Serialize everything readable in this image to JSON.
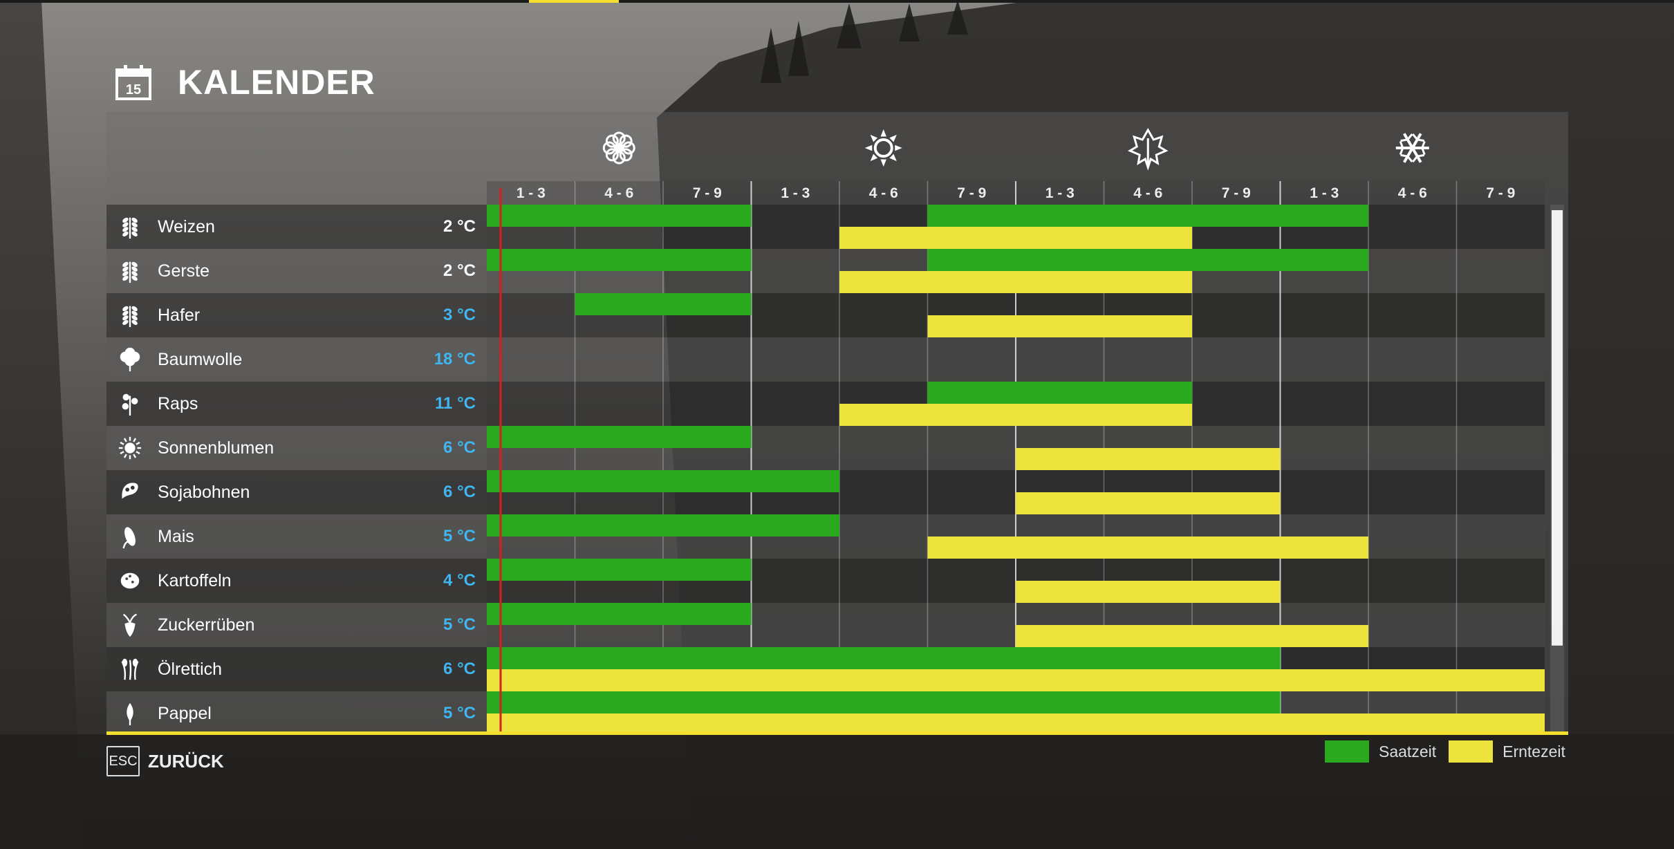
{
  "screen": {
    "title": "KALENDER",
    "calendar_day": "15"
  },
  "season_icons": [
    "spring-flower-icon",
    "summer-sun-icon",
    "autumn-leaf-icon",
    "winter-snowflake-icon"
  ],
  "periods": [
    "1 - 3",
    "4 - 6",
    "7 - 9",
    "1 - 3",
    "4 - 6",
    "7 - 9",
    "1 - 3",
    "4 - 6",
    "7 - 9",
    "1 - 3",
    "4 - 6",
    "7 - 9"
  ],
  "current_period": 1,
  "crops": [
    {
      "name": "Weizen",
      "temp": "2 °C",
      "temp_color": "#ffffff",
      "icon": "wheat-icon",
      "sow": [
        [
          1,
          3
        ],
        [
          6,
          10
        ]
      ],
      "harvest": [
        [
          5,
          8
        ]
      ]
    },
    {
      "name": "Gerste",
      "temp": "2 °C",
      "temp_color": "#ffffff",
      "icon": "barley-icon",
      "sow": [
        [
          1,
          3
        ],
        [
          6,
          10
        ]
      ],
      "harvest": [
        [
          5,
          8
        ]
      ]
    },
    {
      "name": "Hafer",
      "temp": "3 °C",
      "temp_color": "#3fb6f0",
      "icon": "oat-icon",
      "sow": [
        [
          2,
          3
        ]
      ],
      "harvest": [
        [
          6,
          8
        ]
      ]
    },
    {
      "name": "Baumwolle",
      "temp": "18 °C",
      "temp_color": "#3fb6f0",
      "icon": "cotton-icon",
      "sow": [],
      "harvest": []
    },
    {
      "name": "Raps",
      "temp": "11 °C",
      "temp_color": "#3fb6f0",
      "icon": "canola-icon",
      "sow": [
        [
          6,
          8
        ]
      ],
      "harvest": [
        [
          5,
          8
        ]
      ]
    },
    {
      "name": "Sonnenblumen",
      "temp": "6 °C",
      "temp_color": "#3fb6f0",
      "icon": "sunflower-icon",
      "sow": [
        [
          1,
          3
        ]
      ],
      "harvest": [
        [
          7,
          9
        ]
      ]
    },
    {
      "name": "Sojabohnen",
      "temp": "6 °C",
      "temp_color": "#3fb6f0",
      "icon": "soybean-icon",
      "sow": [
        [
          1,
          4
        ]
      ],
      "harvest": [
        [
          7,
          9
        ]
      ]
    },
    {
      "name": "Mais",
      "temp": "5 °C",
      "temp_color": "#3fb6f0",
      "icon": "corn-icon",
      "sow": [
        [
          1,
          4
        ]
      ],
      "harvest": [
        [
          6,
          10
        ]
      ]
    },
    {
      "name": "Kartoffeln",
      "temp": "4 °C",
      "temp_color": "#3fb6f0",
      "icon": "potato-icon",
      "sow": [
        [
          1,
          3
        ]
      ],
      "harvest": [
        [
          7,
          9
        ]
      ]
    },
    {
      "name": "Zuckerrüben",
      "temp": "5 °C",
      "temp_color": "#3fb6f0",
      "icon": "sugarbeet-icon",
      "sow": [
        [
          1,
          3
        ]
      ],
      "harvest": [
        [
          7,
          10
        ]
      ]
    },
    {
      "name": "Ölrettich",
      "temp": "6 °C",
      "temp_color": "#3fb6f0",
      "icon": "oilradish-icon",
      "sow": [
        [
          1,
          9
        ]
      ],
      "harvest": [
        [
          1,
          12
        ]
      ]
    },
    {
      "name": "Pappel",
      "temp": "5 °C",
      "temp_color": "#3fb6f0",
      "icon": "poplar-icon",
      "sow": [
        [
          1,
          9
        ]
      ],
      "harvest": [
        [
          1,
          12
        ]
      ]
    }
  ],
  "footer": {
    "esc_key": "ESC",
    "back_label": "ZURÜCK"
  },
  "legend": [
    {
      "label": "Saatzeit",
      "color": "#2aa81e"
    },
    {
      "label": "Erntezeit",
      "color": "#ece43c"
    }
  ],
  "colors": {
    "sow": "#2aa81e",
    "harvest": "#ece43c",
    "accent": "#f5de2e",
    "current_marker": "#d62020"
  }
}
